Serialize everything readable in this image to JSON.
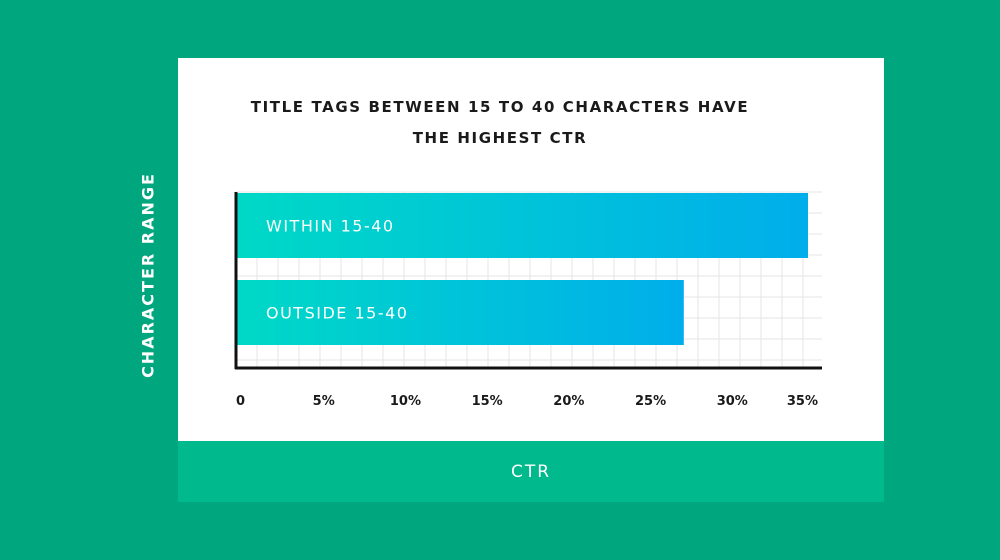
{
  "chart_data": {
    "type": "bar",
    "orientation": "horizontal",
    "title_lines": [
      "TITLE TAGS BETWEEN 15 TO 40 CHARACTERS HAVE",
      "THE HIGHEST CTR"
    ],
    "xlabel": "CTR",
    "ylabel": "CHARACTER RANGE",
    "categories": [
      "WITHIN 15-40",
      "OUTSIDE 15-40"
    ],
    "values": [
      35,
      27.4
    ],
    "xlim": [
      0,
      35
    ],
    "x_ticks": [
      0,
      5,
      10,
      15,
      20,
      25,
      30,
      35
    ],
    "x_tick_labels": [
      "0",
      "5%",
      "10%",
      "15%",
      "20%",
      "25%",
      "30%",
      "35%"
    ],
    "grid": true,
    "colors": {
      "bar_start": "#00d9c6",
      "bar_end": "#00aeeb",
      "background": "#00a67e",
      "footer": "#00b98d"
    }
  }
}
